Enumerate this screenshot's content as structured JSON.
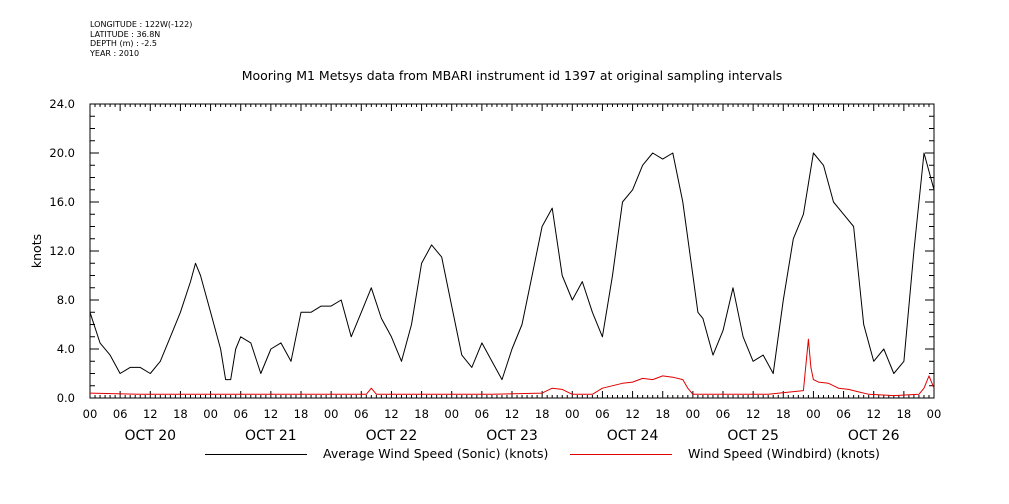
{
  "metadata": {
    "longitude": "LONGITUDE : 122W(-122)",
    "latitude": "LATITUDE : 36.8N",
    "depth": "DEPTH (m) : -2.5",
    "year": "YEAR : 2010"
  },
  "chart_data": {
    "type": "line",
    "title": "Mooring M1 Metsys data from MBARI instrument id 1397 at original sampling intervals",
    "ylabel": "knots",
    "xlabel": "",
    "ylim": [
      0,
      24
    ],
    "yticks": [
      "0.0",
      "4.0",
      "8.0",
      "12.0",
      "16.0",
      "20.0",
      "24.0"
    ],
    "xlim_hours": [
      0,
      168
    ],
    "hour_tick_labels": [
      "00",
      "06",
      "12",
      "18"
    ],
    "final_tick_label": "00",
    "day_labels": [
      "OCT 20",
      "OCT 21",
      "OCT 22",
      "OCT 23",
      "OCT 24",
      "OCT 25",
      "OCT 26"
    ],
    "grid": false,
    "legend_position": "bottom",
    "series": [
      {
        "name": "Average Wind Speed (Sonic) (knots)",
        "color": "#000000",
        "x": [
          0,
          2,
          4,
          6,
          8,
          10,
          12,
          14,
          16,
          18,
          20,
          21,
          22,
          24,
          26,
          27,
          28,
          29,
          30,
          32,
          34,
          36,
          38,
          40,
          42,
          44,
          46,
          48,
          50,
          52,
          54,
          56,
          58,
          60,
          62,
          64,
          66,
          68,
          70,
          72,
          74,
          76,
          78,
          80,
          82,
          84,
          86,
          88,
          90,
          92,
          94,
          96,
          98,
          100,
          102,
          104,
          106,
          108,
          110,
          112,
          114,
          116,
          118,
          120,
          121,
          122,
          123,
          124,
          126,
          128,
          130,
          132,
          134,
          136,
          138,
          140,
          142,
          144,
          146,
          148,
          150,
          152,
          154,
          156,
          158,
          160,
          162,
          164,
          166,
          168
        ],
        "y": [
          7.0,
          4.5,
          3.5,
          2.0,
          2.5,
          2.5,
          2.0,
          3.0,
          5.0,
          7.0,
          9.5,
          11.0,
          10.0,
          7.0,
          4.0,
          1.5,
          1.5,
          4.0,
          5.0,
          4.5,
          2.0,
          4.0,
          4.5,
          3.0,
          7.0,
          7.0,
          7.5,
          7.5,
          8.0,
          5.0,
          7.0,
          9.0,
          6.5,
          5.0,
          3.0,
          6.0,
          11.0,
          12.5,
          11.5,
          7.5,
          3.5,
          2.5,
          4.5,
          3.0,
          1.5,
          4.0,
          6.0,
          10.0,
          14.0,
          15.5,
          10.0,
          8.0,
          9.5,
          7.0,
          5.0,
          10.0,
          16.0,
          17.0,
          19.0,
          20.0,
          19.5,
          20.0,
          16.0,
          10.0,
          7.0,
          6.5,
          5.0,
          3.5,
          5.5,
          9.0,
          5.0,
          3.0,
          3.5,
          2.0,
          8.0,
          13.0,
          15.0,
          20.0,
          19.0,
          16.0,
          15.0,
          14.0,
          6.0,
          3.0,
          4.0,
          2.0,
          3.0,
          12.0,
          20.0,
          17.0
        ]
      },
      {
        "name": "Wind Speed (Windbird) (knots)",
        "color": "#e00000",
        "x": [
          0,
          10,
          20,
          30,
          40,
          48,
          55,
          56,
          57,
          65,
          80,
          90,
          92,
          94,
          96,
          100,
          102,
          106,
          108,
          110,
          112,
          114,
          116,
          118,
          119,
          120,
          125,
          135,
          142,
          143,
          143.5,
          144,
          145,
          147,
          149,
          151,
          153,
          155,
          160,
          165,
          166,
          167,
          168
        ],
        "y": [
          0.4,
          0.3,
          0.3,
          0.3,
          0.3,
          0.3,
          0.3,
          0.8,
          0.3,
          0.3,
          0.3,
          0.4,
          0.8,
          0.7,
          0.3,
          0.3,
          0.8,
          1.2,
          1.3,
          1.6,
          1.5,
          1.8,
          1.7,
          1.5,
          0.8,
          0.3,
          0.3,
          0.3,
          0.6,
          4.8,
          2.5,
          1.5,
          1.3,
          1.2,
          0.8,
          0.7,
          0.5,
          0.3,
          0.2,
          0.3,
          0.8,
          1.8,
          0.8
        ]
      }
    ]
  }
}
